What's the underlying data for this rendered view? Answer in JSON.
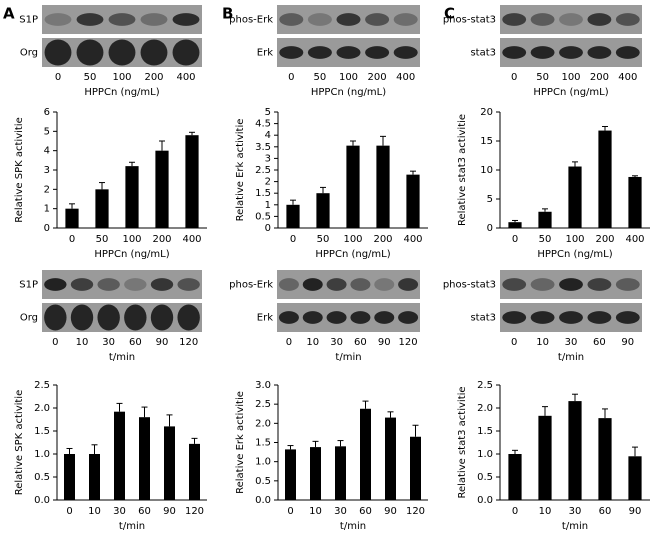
{
  "panels": [
    "A",
    "B",
    "C"
  ],
  "blots": [
    {
      "rows": [
        "S1P",
        "Org"
      ],
      "lanes": [
        "0",
        "50",
        "100",
        "200",
        "400"
      ],
      "xlabel": "HPPCn (ng/mL)"
    },
    {
      "rows": [
        "phos-Erk",
        "Erk"
      ],
      "lanes": [
        "0",
        "50",
        "100",
        "200",
        "400"
      ],
      "xlabel": "HPPCn (ng/mL)"
    },
    {
      "rows": [
        "phos-stat3",
        "stat3"
      ],
      "lanes": [
        "0",
        "50",
        "100",
        "200",
        "400"
      ],
      "xlabel": "HPPCn (ng/mL)"
    },
    {
      "rows": [
        "S1P",
        "Org"
      ],
      "lanes": [
        "0",
        "10",
        "30",
        "60",
        "90",
        "120"
      ],
      "xlabel": "t/min"
    },
    {
      "rows": [
        "phos-Erk",
        "Erk"
      ],
      "lanes": [
        "0",
        "10",
        "30",
        "60",
        "90",
        "120"
      ],
      "xlabel": "t/min"
    },
    {
      "rows": [
        "phos-stat3",
        "stat3"
      ],
      "lanes": [
        "0",
        "10",
        "30",
        "60",
        "90"
      ],
      "xlabel": "t/min"
    }
  ],
  "chart_data": [
    {
      "type": "bar",
      "categories": [
        "0",
        "50",
        "100",
        "200",
        "400"
      ],
      "xlabel": "HPPCn (ng/mL)",
      "ylabel": "Relative SPK activitie",
      "color": "#000000",
      "values": [
        1.0,
        2.0,
        3.2,
        4.0,
        4.8
      ],
      "errors": [
        0.25,
        0.35,
        0.2,
        0.5,
        0.15
      ],
      "ylim": [
        0,
        6
      ],
      "yticks": [
        0,
        1,
        2,
        3,
        4,
        5,
        6
      ]
    },
    {
      "type": "bar",
      "categories": [
        "0",
        "50",
        "100",
        "200",
        "400"
      ],
      "xlabel": "HPPCn (ng/mL)",
      "ylabel": "Relative Erk activitie",
      "color": "#000000",
      "values": [
        1.0,
        1.5,
        3.55,
        3.55,
        2.3
      ],
      "errors": [
        0.2,
        0.25,
        0.2,
        0.4,
        0.15
      ],
      "ylim": [
        0,
        5
      ],
      "yticks": [
        0,
        0.5,
        1,
        1.5,
        2,
        2.5,
        3,
        3.5,
        4,
        4.5,
        5
      ]
    },
    {
      "type": "bar",
      "categories": [
        "0",
        "50",
        "100",
        "200",
        "400"
      ],
      "xlabel": "HPPCn (ng/mL)",
      "ylabel": "Relative stat3 activitie",
      "color": "#000000",
      "values": [
        1.0,
        2.8,
        10.6,
        16.8,
        8.8
      ],
      "errors": [
        0.3,
        0.5,
        0.8,
        0.7,
        0.2
      ],
      "ylim": [
        0,
        20
      ],
      "yticks": [
        0,
        5,
        10,
        15,
        20
      ]
    },
    {
      "type": "bar",
      "categories": [
        "0",
        "10",
        "30",
        "60",
        "90",
        "120"
      ],
      "xlabel": "t/min",
      "ylabel": "Relative SPK activitie",
      "color": "#000000",
      "values": [
        1.0,
        1.0,
        1.92,
        1.8,
        1.6,
        1.22
      ],
      "errors": [
        0.12,
        0.2,
        0.18,
        0.22,
        0.25,
        0.12
      ],
      "ylim": [
        0,
        2.5
      ],
      "yticks": [
        {
          "value": 0,
          "label": "0.0"
        },
        0.5,
        {
          "value": 1,
          "label": "1.0"
        },
        1.5,
        {
          "value": 2,
          "label": "2.0"
        },
        2.5
      ]
    },
    {
      "type": "bar",
      "categories": [
        "0",
        "10",
        "30",
        "60",
        "90",
        "120"
      ],
      "xlabel": "t/min",
      "ylabel": "Relative Erk activitie",
      "color": "#000000",
      "values": [
        1.32,
        1.38,
        1.4,
        2.38,
        2.15,
        1.65
      ],
      "errors": [
        0.1,
        0.15,
        0.15,
        0.2,
        0.15,
        0.3
      ],
      "ylim": [
        0,
        3
      ],
      "yticks": [
        {
          "value": 0,
          "label": "0.0"
        },
        0.5,
        {
          "value": 1,
          "label": "1.0"
        },
        1.5,
        {
          "value": 2,
          "label": "2.0"
        },
        2.5,
        {
          "value": 3,
          "label": "3.0"
        }
      ]
    },
    {
      "type": "bar",
      "categories": [
        "0",
        "10",
        "30",
        "60",
        "90"
      ],
      "xlabel": "t/min",
      "ylabel": "Relative stat3 activitie",
      "color": "#000000",
      "values": [
        1.0,
        1.83,
        2.15,
        1.78,
        0.95
      ],
      "errors": [
        0.08,
        0.2,
        0.15,
        0.2,
        0.2
      ],
      "ylim": [
        0,
        2.5
      ],
      "yticks": [
        {
          "value": 0,
          "label": "0.0"
        },
        0.5,
        {
          "value": 1,
          "label": "1.0"
        },
        1.5,
        {
          "value": 2,
          "label": "2.0"
        },
        2.5
      ]
    }
  ]
}
